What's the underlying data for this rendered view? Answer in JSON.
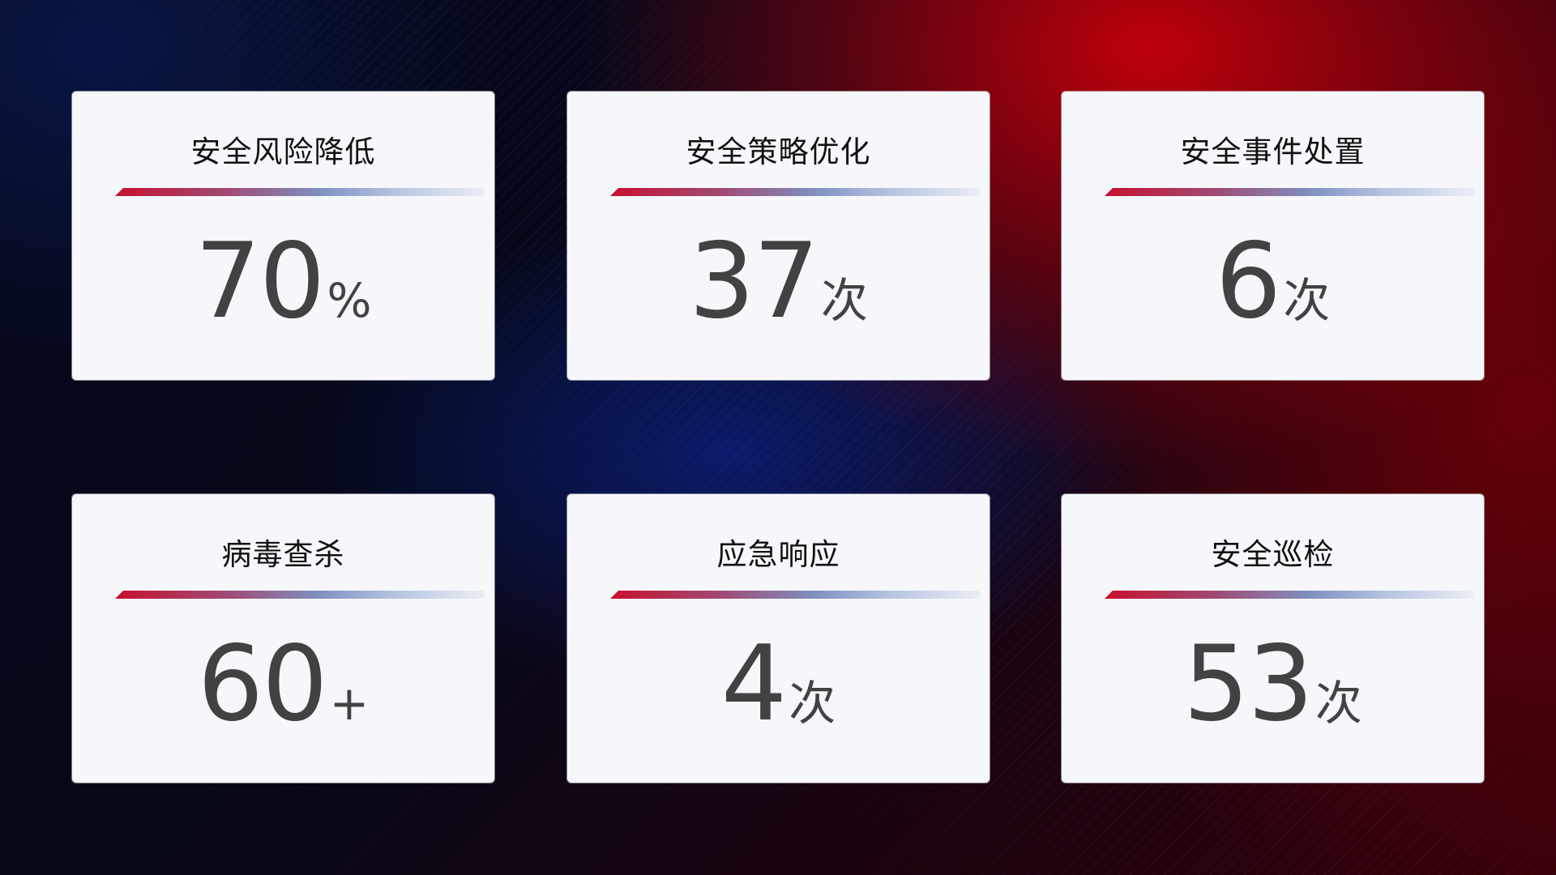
{
  "cards": [
    {
      "title": "安全风险降低",
      "value": "70",
      "unit": "%"
    },
    {
      "title": "安全策略优化",
      "value": "37",
      "unit": "次"
    },
    {
      "title": "安全事件处置",
      "value": "6",
      "unit": "次"
    },
    {
      "title": "病毒查杀",
      "value": "60",
      "unit": "+"
    },
    {
      "title": "应急响应",
      "value": "4",
      "unit": "次"
    },
    {
      "title": "安全巡检",
      "value": "53",
      "unit": "次"
    }
  ],
  "colors": {
    "accent_red": "#c8102e",
    "accent_blue": "#7f8fc0",
    "card_bg": "#f6f7fb",
    "value_text": "#424242"
  }
}
